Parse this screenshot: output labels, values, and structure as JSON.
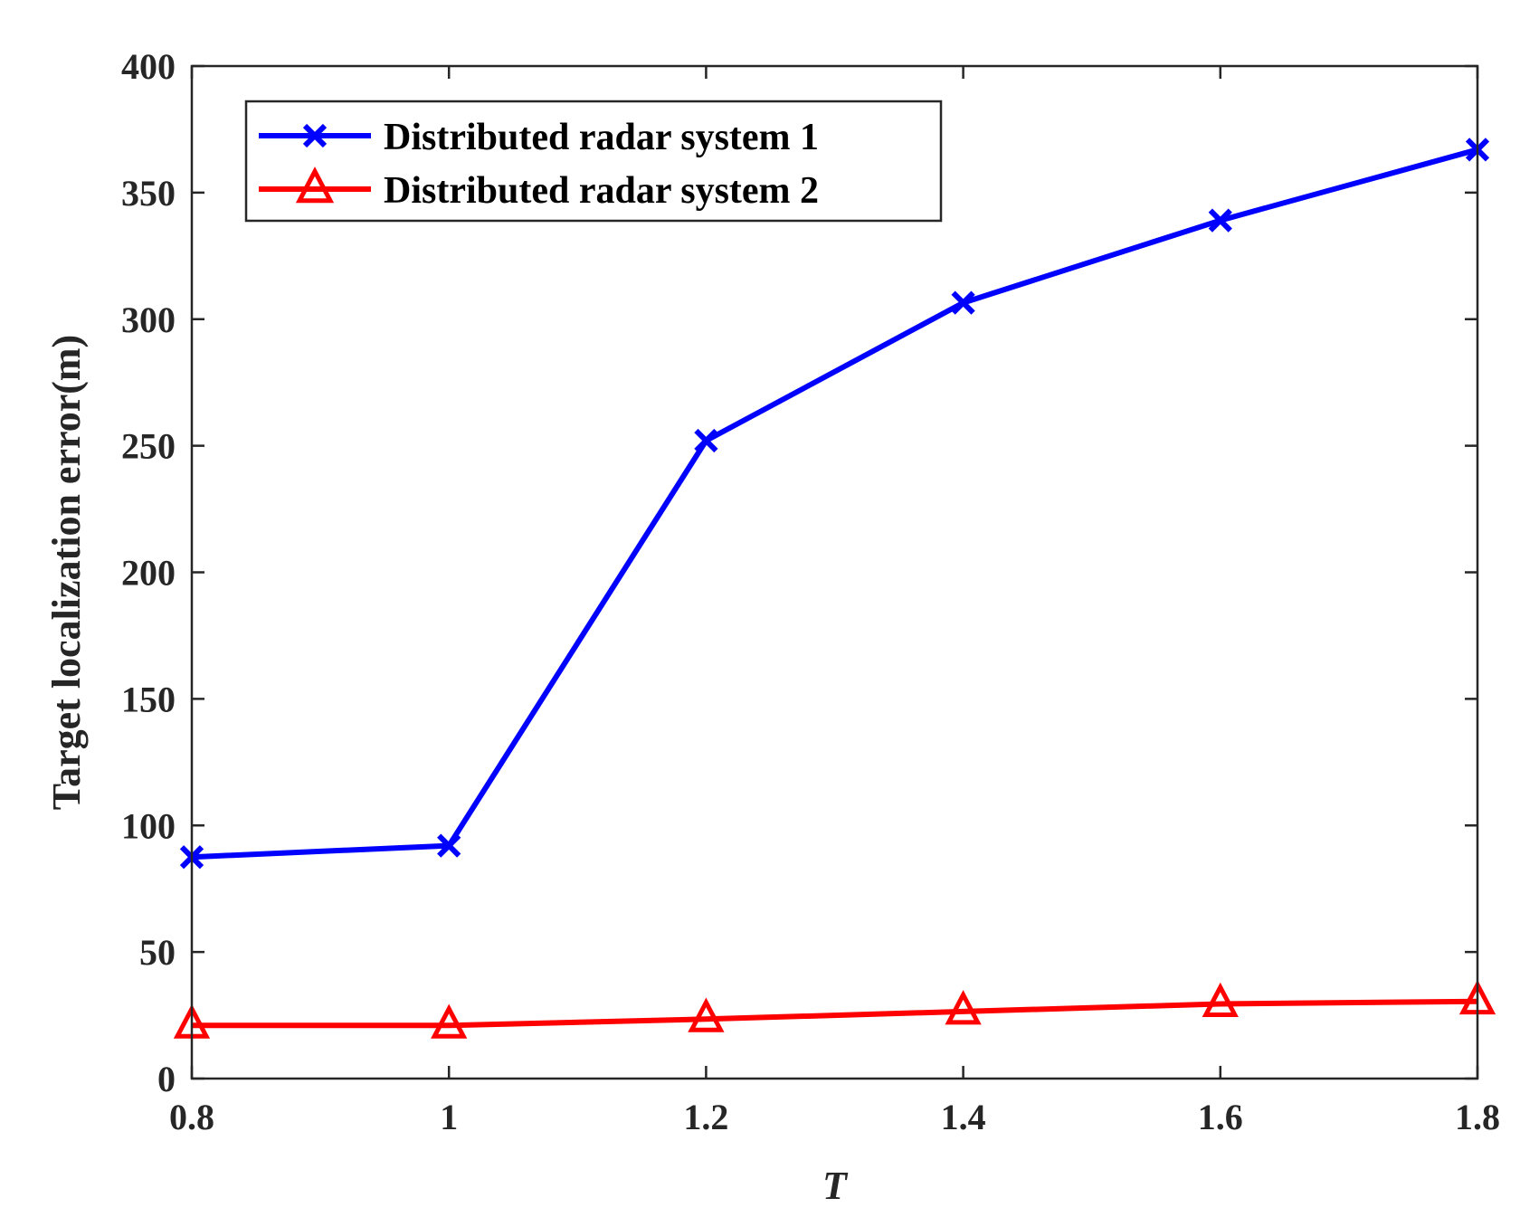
{
  "chart_data": {
    "type": "line",
    "title": "",
    "xlabel": "T",
    "ylabel": "Target localization error(m)",
    "xlim": [
      0.8,
      1.8
    ],
    "ylim": [
      0,
      400
    ],
    "xticks": [
      0.8,
      1,
      1.2,
      1.4,
      1.6,
      1.8
    ],
    "xtick_labels": [
      "0.8",
      "1",
      "1.2",
      "1.4",
      "1.6",
      "1.8"
    ],
    "yticks": [
      0,
      50,
      100,
      150,
      200,
      250,
      300,
      350,
      400
    ],
    "ytick_labels": [
      "0",
      "50",
      "100",
      "150",
      "200",
      "250",
      "300",
      "350",
      "400"
    ],
    "grid": false,
    "legend_position": "top-left",
    "x": [
      0.8,
      1.0,
      1.2,
      1.4,
      1.6,
      1.8
    ],
    "series": [
      {
        "name": "Distributed radar system 1",
        "values": [
          87.5,
          92,
          252,
          306.5,
          339,
          367
        ],
        "color": "#0000ff",
        "marker": "x-icon"
      },
      {
        "name": "Distributed radar system 2",
        "values": [
          21,
          21,
          23.5,
          26.5,
          29.5,
          30.5
        ],
        "color": "#ff0000",
        "marker": "triangle-icon"
      }
    ]
  }
}
